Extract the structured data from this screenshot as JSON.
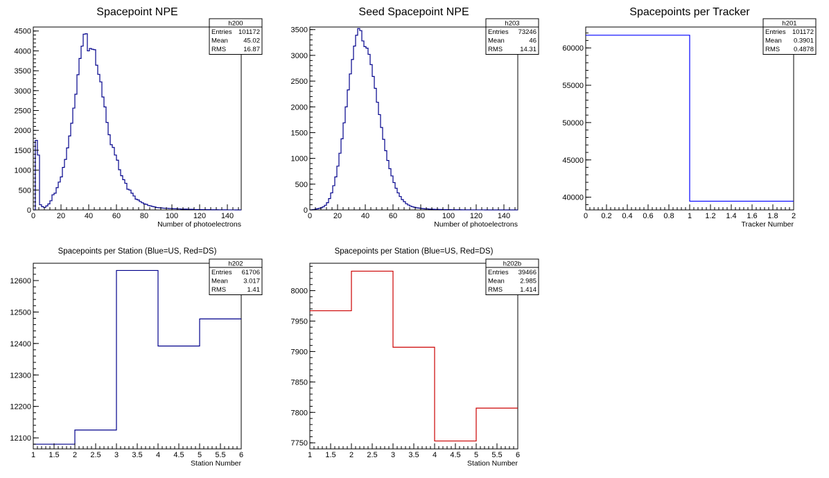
{
  "chart_data": [
    {
      "id": "h200",
      "type": "histogram",
      "title": "Spacepoint NPE",
      "xlabel": "Number of photoelectrons",
      "ylabel": "",
      "xlim": [
        0,
        150
      ],
      "ylim": [
        0,
        4600
      ],
      "xticks": [
        0,
        20,
        40,
        60,
        80,
        100,
        120,
        140
      ],
      "yticks": [
        0,
        500,
        1000,
        1500,
        2000,
        2500,
        3000,
        3500,
        4000,
        4500
      ],
      "color": "#00008b",
      "bin_width": 1.5,
      "values": [
        0,
        1750,
        1380,
        130,
        80,
        60,
        100,
        150,
        230,
        380,
        420,
        560,
        700,
        830,
        1070,
        1270,
        1560,
        1860,
        2180,
        2560,
        2910,
        3400,
        3810,
        4120,
        4420,
        4430,
        4000,
        4060,
        4040,
        4030,
        3640,
        3410,
        3220,
        2840,
        2590,
        2200,
        1890,
        1640,
        1570,
        1380,
        1250,
        1010,
        860,
        760,
        670,
        520,
        500,
        420,
        350,
        270,
        250,
        210,
        180,
        150,
        140,
        110,
        100,
        85,
        75,
        60,
        55,
        50,
        45,
        40,
        40,
        35,
        35,
        30,
        30,
        25,
        25,
        20,
        20,
        20,
        15,
        15,
        15,
        10,
        10,
        10,
        10,
        8,
        8,
        6,
        6,
        5,
        5,
        4,
        4,
        3,
        3,
        2,
        2,
        1,
        1,
        1,
        1,
        0,
        0,
        0
      ],
      "stats": {
        "name": "h200",
        "rows": [
          [
            "Entries",
            "101172"
          ],
          [
            "Mean",
            "45.02"
          ],
          [
            "RMS",
            "16.87"
          ]
        ]
      }
    },
    {
      "id": "h203",
      "type": "histogram",
      "title": "Seed Spacepoint NPE",
      "xlabel": "Number of photoelectrons",
      "ylabel": "",
      "xlim": [
        0,
        150
      ],
      "ylim": [
        0,
        3550
      ],
      "xticks": [
        0,
        20,
        40,
        60,
        80,
        100,
        120,
        140
      ],
      "yticks": [
        0,
        500,
        1000,
        1500,
        2000,
        2500,
        3000,
        3500
      ],
      "color": "#00008b",
      "bin_width": 1.5,
      "values": [
        0,
        5,
        10,
        20,
        30,
        40,
        60,
        90,
        140,
        220,
        330,
        470,
        640,
        850,
        1100,
        1380,
        1690,
        2000,
        2330,
        2640,
        2920,
        3180,
        3390,
        3520,
        3480,
        3280,
        3170,
        3140,
        3020,
        2820,
        2590,
        2360,
        2090,
        1850,
        1600,
        1370,
        1150,
        960,
        800,
        660,
        530,
        420,
        330,
        260,
        200,
        160,
        120,
        95,
        75,
        60,
        50,
        40,
        35,
        30,
        25,
        20,
        20,
        15,
        15,
        12,
        10,
        10,
        8,
        8,
        6,
        6,
        5,
        5,
        4,
        4,
        3,
        3,
        3,
        2,
        2,
        2,
        2,
        1,
        1,
        1,
        1,
        1,
        1,
        1,
        0,
        0,
        0,
        0,
        0,
        0,
        0,
        0,
        0,
        0,
        0,
        0,
        0,
        0,
        0,
        0
      ],
      "stats": {
        "name": "h203",
        "rows": [
          [
            "Entries",
            "73246"
          ],
          [
            "Mean",
            "46"
          ],
          [
            "RMS",
            "14.31"
          ]
        ]
      }
    },
    {
      "id": "h201",
      "type": "histogram",
      "title": "Spacepoints per Tracker",
      "xlabel": "Tracker Number",
      "ylabel": "",
      "xlim": [
        0,
        2
      ],
      "ylim": [
        38300,
        62800
      ],
      "xticks": [
        0,
        0.2,
        0.4,
        0.6,
        0.8,
        1,
        1.2,
        1.4,
        1.6,
        1.8,
        2
      ],
      "yticks": [
        40000,
        45000,
        50000,
        55000,
        60000
      ],
      "color": "#0000ff",
      "bin_edges": [
        0,
        1,
        2
      ],
      "values": [
        61706,
        39466
      ],
      "stats": {
        "name": "h201",
        "rows": [
          [
            "Entries",
            "101172"
          ],
          [
            "Mean",
            "0.3901"
          ],
          [
            "RMS",
            "0.4878"
          ]
        ]
      }
    },
    {
      "id": "h202",
      "type": "histogram",
      "title": "Spacepoints per Station (Blue=US, Red=DS)",
      "xlabel": "Station Number",
      "ylabel": "",
      "xlim": [
        1,
        6
      ],
      "ylim": [
        12065,
        12655
      ],
      "xticks": [
        1,
        1.5,
        2,
        2.5,
        3,
        3.5,
        4,
        4.5,
        5,
        5.5,
        6
      ],
      "yticks": [
        12100,
        12200,
        12300,
        12400,
        12500,
        12600
      ],
      "color": "#00008b",
      "bin_edges": [
        1,
        2,
        3,
        4,
        5,
        6
      ],
      "values": [
        12080,
        12125,
        12632,
        12392,
        12478
      ],
      "stats": {
        "name": "h202",
        "rows": [
          [
            "Entries",
            "61706"
          ],
          [
            "Mean",
            "3.017"
          ],
          [
            "RMS",
            "1.41"
          ]
        ]
      }
    },
    {
      "id": "h202b",
      "type": "histogram",
      "title": "Spacepoints per Station (Blue=US, Red=DS)",
      "xlabel": "Station Number",
      "ylabel": "",
      "xlim": [
        1,
        6
      ],
      "ylim": [
        7740,
        8045
      ],
      "xticks": [
        1,
        1.5,
        2,
        2.5,
        3,
        3.5,
        4,
        4.5,
        5,
        5.5,
        6
      ],
      "yticks": [
        7750,
        7800,
        7850,
        7900,
        7950,
        8000
      ],
      "color": "#cc0000",
      "bin_edges": [
        1,
        2,
        3,
        4,
        5,
        6
      ],
      "values": [
        7967,
        8032,
        7907,
        7753,
        7807
      ],
      "stats": {
        "name": "h202b",
        "rows": [
          [
            "Entries",
            "39466"
          ],
          [
            "Mean",
            "2.985"
          ],
          [
            "RMS",
            "1.414"
          ]
        ]
      }
    }
  ]
}
